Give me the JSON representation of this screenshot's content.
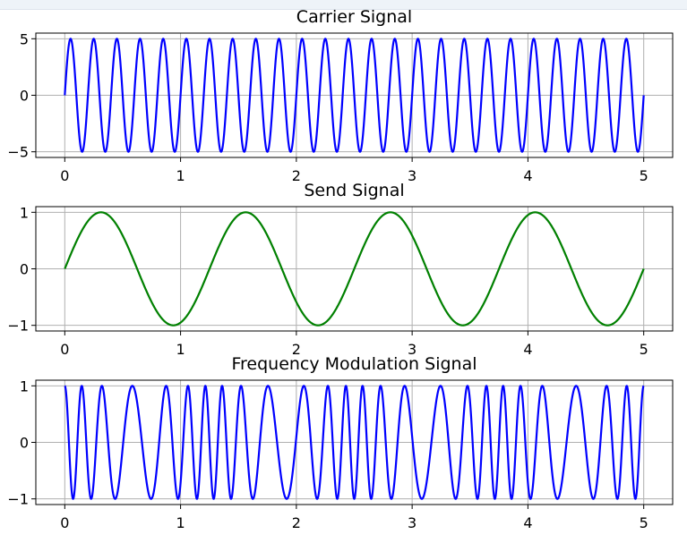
{
  "chart_data": [
    {
      "type": "line",
      "title": "Carrier Signal",
      "xlabel": "",
      "ylabel": "",
      "xlim": [
        -0.25,
        5.25
      ],
      "ylim": [
        -5.5,
        5.5
      ],
      "xticks": [
        0,
        1,
        2,
        3,
        4,
        5
      ],
      "yticks": [
        5,
        0,
        -5
      ],
      "xtick_labels": [
        "0",
        "1",
        "2",
        "3",
        "4",
        "5"
      ],
      "ytick_labels": [
        "5",
        "0",
        "−5"
      ],
      "grid": true,
      "series": [
        {
          "function": "A*sin(2*pi*f*t)",
          "amplitude": 5,
          "frequency_hz": 5,
          "t_range": [
            0,
            5
          ],
          "color": "#0000ff"
        }
      ]
    },
    {
      "type": "line",
      "title": "Send Signal",
      "xlabel": "",
      "ylabel": "",
      "xlim": [
        -0.25,
        5.25
      ],
      "ylim": [
        -1.1,
        1.1
      ],
      "xticks": [
        0,
        1,
        2,
        3,
        4,
        5
      ],
      "yticks": [
        1,
        0,
        -1
      ],
      "xtick_labels": [
        "0",
        "1",
        "2",
        "3",
        "4",
        "5"
      ],
      "ytick_labels": [
        "1",
        "0",
        "−1"
      ],
      "grid": true,
      "series": [
        {
          "function": "A*sin(2*pi*f*t)",
          "amplitude": 1,
          "frequency_hz": 0.8,
          "t_range": [
            0,
            5
          ],
          "color": "#008000"
        }
      ]
    },
    {
      "type": "line",
      "title": "Frequency Modulation Signal",
      "xlabel": "",
      "ylabel": "",
      "xlim": [
        -0.25,
        5.25
      ],
      "ylim": [
        -1.1,
        1.1
      ],
      "xticks": [
        0,
        1,
        2,
        3,
        4,
        5
      ],
      "yticks": [
        1,
        0,
        -1
      ],
      "xtick_labels": [
        "0",
        "1",
        "2",
        "3",
        "4",
        "5"
      ],
      "ytick_labels": [
        "1",
        "0",
        "−1"
      ],
      "grid": true,
      "series": [
        {
          "function": "cos(2*pi*fc*t + beta*sin(2*pi*fm*t))",
          "amplitude": 1,
          "carrier_frequency_hz": 5,
          "modulating_frequency_hz": 0.8,
          "modulation_index": 2.5,
          "t_range": [
            0,
            5
          ],
          "color": "#0000ff"
        }
      ]
    }
  ]
}
